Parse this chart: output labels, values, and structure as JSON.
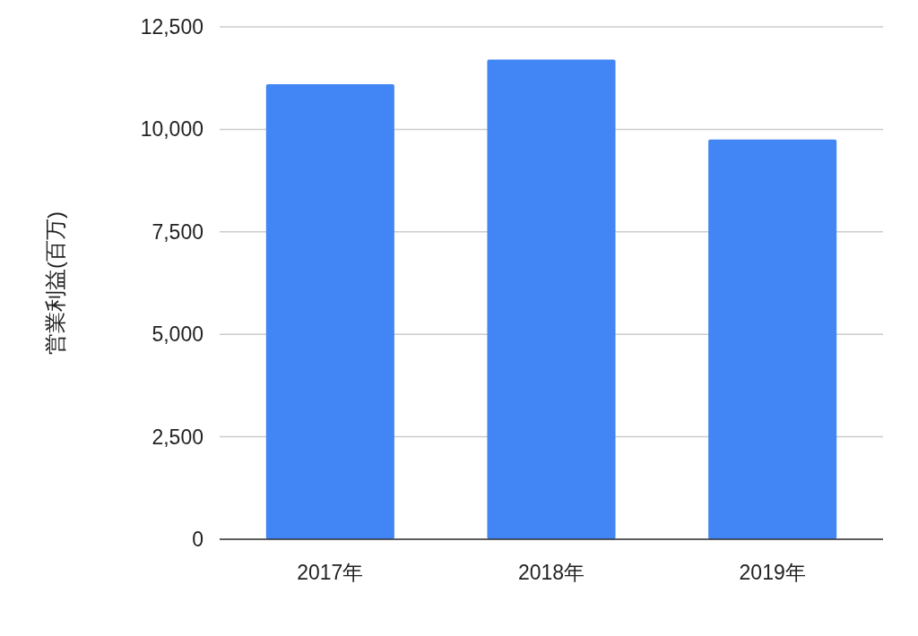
{
  "chart_data": {
    "type": "bar",
    "ylabel": "営業利益(百万)",
    "categories": [
      "2017年",
      "2018年",
      "2019年"
    ],
    "values": [
      11100,
      11700,
      9750
    ],
    "color": "#4285f4",
    "ylim": [
      0,
      12500
    ],
    "yticks": [
      {
        "value": 0,
        "label": "0"
      },
      {
        "value": 2500,
        "label": "2,500"
      },
      {
        "value": 5000,
        "label": "5,000"
      },
      {
        "value": 7500,
        "label": "7,500"
      },
      {
        "value": 10000,
        "label": "10,000"
      },
      {
        "value": 12500,
        "label": "12,500"
      }
    ],
    "grid": "y"
  }
}
